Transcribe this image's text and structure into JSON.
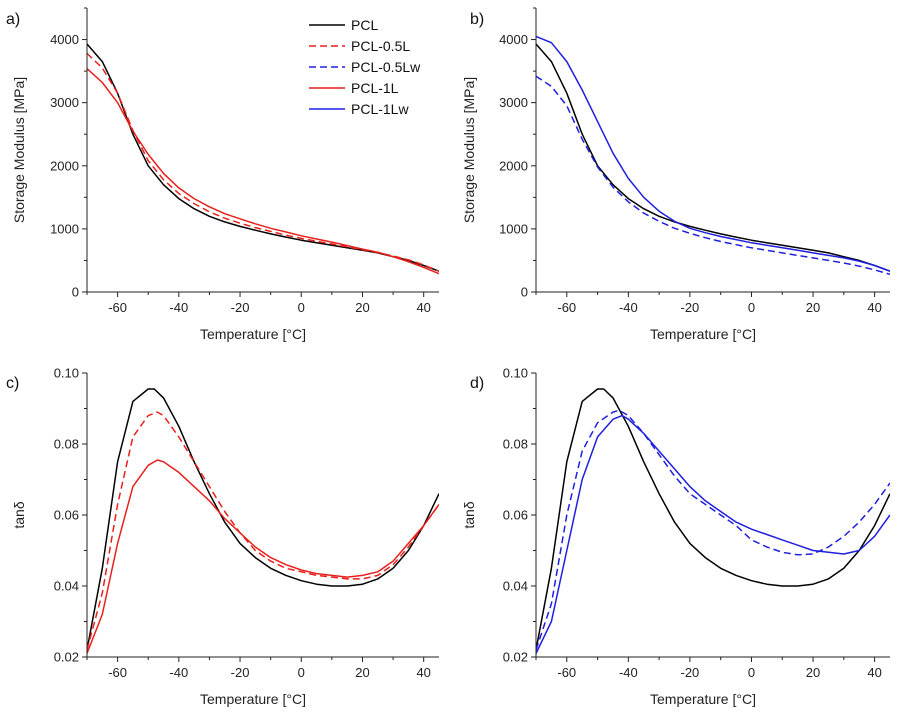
{
  "chart_data": [
    {
      "panel_label": "a)",
      "type": "line",
      "xlabel": "Temperature [°C]",
      "ylabel": "Storage Modulus [MPa]",
      "xlim": [
        -70,
        45
      ],
      "ylim": [
        0,
        4500
      ],
      "xticks": [
        -60,
        -40,
        -20,
        0,
        20,
        40
      ],
      "yticks": [
        0,
        1000,
        2000,
        3000,
        4000
      ],
      "legend": {
        "placement": "top-right"
      },
      "series": [
        {
          "name": "PCL",
          "color": "#000000",
          "dash": "solid",
          "x": [
            -70,
            -65,
            -60,
            -55,
            -50,
            -45,
            -40,
            -35,
            -30,
            -25,
            -20,
            -15,
            -10,
            -5,
            0,
            5,
            10,
            15,
            20,
            25,
            30,
            35,
            40,
            45
          ],
          "y": [
            3930,
            3650,
            3150,
            2500,
            2000,
            1700,
            1480,
            1320,
            1200,
            1110,
            1040,
            980,
            920,
            870,
            820,
            780,
            740,
            700,
            660,
            620,
            560,
            500,
            420,
            330
          ]
        },
        {
          "name": "PCL-0.5L",
          "color": "#e8201c",
          "dash": "dashed",
          "x": [
            -70,
            -65,
            -60,
            -55,
            -50,
            -45,
            -40,
            -35,
            -30,
            -25,
            -20,
            -15,
            -10,
            -5,
            0,
            5,
            10,
            15,
            20,
            25,
            30,
            35,
            40,
            45
          ],
          "y": [
            3780,
            3550,
            3150,
            2560,
            2080,
            1780,
            1560,
            1400,
            1270,
            1170,
            1090,
            1020,
            960,
            900,
            850,
            805,
            760,
            715,
            670,
            625,
            570,
            510,
            430,
            330
          ]
        },
        {
          "name": "PCL-1L",
          "color": "#e8201c",
          "dash": "solid",
          "x": [
            -70,
            -65,
            -60,
            -55,
            -50,
            -45,
            -40,
            -35,
            -30,
            -25,
            -20,
            -15,
            -10,
            -5,
            0,
            5,
            10,
            15,
            20,
            25,
            30,
            35,
            40,
            45
          ],
          "y": [
            3540,
            3320,
            3000,
            2550,
            2180,
            1880,
            1650,
            1480,
            1350,
            1240,
            1160,
            1080,
            1010,
            950,
            890,
            840,
            790,
            735,
            680,
            630,
            560,
            480,
            390,
            290
          ]
        }
      ]
    },
    {
      "panel_label": "b)",
      "type": "line",
      "xlabel": "Temperature [°C]",
      "ylabel": "Storage Modulus [MPa]",
      "xlim": [
        -70,
        45
      ],
      "ylim": [
        0,
        4500
      ],
      "xticks": [
        -60,
        -40,
        -20,
        0,
        20,
        40
      ],
      "yticks": [
        0,
        1000,
        2000,
        3000,
        4000
      ],
      "series": [
        {
          "name": "PCL",
          "color": "#000000",
          "dash": "solid",
          "x": [
            -70,
            -65,
            -60,
            -55,
            -50,
            -45,
            -40,
            -35,
            -30,
            -25,
            -20,
            -15,
            -10,
            -5,
            0,
            5,
            10,
            15,
            20,
            25,
            30,
            35,
            40,
            45
          ],
          "y": [
            3930,
            3650,
            3150,
            2500,
            2000,
            1700,
            1480,
            1320,
            1200,
            1110,
            1040,
            980,
            920,
            870,
            820,
            780,
            740,
            700,
            660,
            620,
            560,
            500,
            420,
            330
          ]
        },
        {
          "name": "PCL-0.5Lw",
          "color": "#1f1fe0",
          "dash": "dashed",
          "x": [
            -70,
            -65,
            -60,
            -55,
            -50,
            -45,
            -40,
            -35,
            -30,
            -25,
            -20,
            -15,
            -10,
            -5,
            0,
            5,
            10,
            15,
            20,
            25,
            30,
            35,
            40,
            45
          ],
          "y": [
            3420,
            3260,
            2950,
            2420,
            1980,
            1660,
            1430,
            1250,
            1120,
            1010,
            930,
            860,
            800,
            750,
            700,
            660,
            620,
            580,
            540,
            500,
            460,
            410,
            350,
            280
          ]
        },
        {
          "name": "PCL-1Lw",
          "color": "#1f1fe0",
          "dash": "solid",
          "x": [
            -70,
            -65,
            -60,
            -55,
            -50,
            -45,
            -40,
            -35,
            -30,
            -25,
            -20,
            -15,
            -10,
            -5,
            0,
            5,
            10,
            15,
            20,
            25,
            30,
            35,
            40,
            45
          ],
          "y": [
            4050,
            3950,
            3650,
            3200,
            2700,
            2200,
            1800,
            1500,
            1280,
            1120,
            1010,
            940,
            880,
            830,
            780,
            740,
            700,
            660,
            620,
            580,
            540,
            490,
            420,
            330
          ]
        }
      ]
    },
    {
      "panel_label": "c)",
      "type": "line",
      "xlabel": "Temperature [°C]",
      "ylabel": "tanδ",
      "xlim": [
        -70,
        45
      ],
      "ylim": [
        0.02,
        0.1
      ],
      "xticks": [
        -60,
        -40,
        -20,
        0,
        20,
        40
      ],
      "yticks": [
        0.02,
        0.04,
        0.06,
        0.08,
        0.1
      ],
      "series": [
        {
          "name": "PCL",
          "color": "#000000",
          "dash": "solid",
          "x": [
            -70,
            -65,
            -60,
            -55,
            -50,
            -48,
            -45,
            -40,
            -35,
            -30,
            -25,
            -20,
            -15,
            -10,
            -5,
            0,
            5,
            10,
            15,
            20,
            25,
            30,
            35,
            40,
            45
          ],
          "y": [
            0.022,
            0.045,
            0.075,
            0.092,
            0.0955,
            0.0955,
            0.093,
            0.085,
            0.075,
            0.066,
            0.058,
            0.052,
            0.048,
            0.045,
            0.043,
            0.0415,
            0.0405,
            0.04,
            0.04,
            0.0405,
            0.042,
            0.045,
            0.05,
            0.057,
            0.066
          ]
        },
        {
          "name": "PCL-0.5L",
          "color": "#e8201c",
          "dash": "dashed",
          "x": [
            -70,
            -65,
            -60,
            -55,
            -50,
            -47,
            -45,
            -40,
            -35,
            -30,
            -25,
            -20,
            -15,
            -10,
            -5,
            0,
            5,
            10,
            15,
            20,
            25,
            30,
            35,
            40,
            45
          ],
          "y": [
            0.022,
            0.038,
            0.063,
            0.082,
            0.088,
            0.089,
            0.088,
            0.082,
            0.075,
            0.068,
            0.061,
            0.055,
            0.05,
            0.047,
            0.045,
            0.044,
            0.043,
            0.0425,
            0.042,
            0.042,
            0.043,
            0.046,
            0.051,
            0.057,
            0.063
          ]
        },
        {
          "name": "PCL-1L",
          "color": "#e8201c",
          "dash": "solid",
          "x": [
            -70,
            -65,
            -60,
            -55,
            -50,
            -47,
            -45,
            -40,
            -35,
            -30,
            -25,
            -20,
            -15,
            -10,
            -5,
            0,
            5,
            10,
            15,
            20,
            25,
            30,
            35,
            40,
            45
          ],
          "y": [
            0.021,
            0.032,
            0.052,
            0.068,
            0.074,
            0.0755,
            0.075,
            0.072,
            0.068,
            0.064,
            0.059,
            0.055,
            0.051,
            0.048,
            0.046,
            0.0445,
            0.0435,
            0.043,
            0.0425,
            0.043,
            0.044,
            0.047,
            0.052,
            0.057,
            0.063
          ]
        }
      ]
    },
    {
      "panel_label": "d)",
      "type": "line",
      "xlabel": "Temperature [°C]",
      "ylabel": "tanδ",
      "xlim": [
        -70,
        45
      ],
      "ylim": [
        0.02,
        0.1
      ],
      "xticks": [
        -60,
        -40,
        -20,
        0,
        20,
        40
      ],
      "yticks": [
        0.02,
        0.04,
        0.06,
        0.08,
        0.1
      ],
      "series": [
        {
          "name": "PCL",
          "color": "#000000",
          "dash": "solid",
          "x": [
            -70,
            -65,
            -60,
            -55,
            -50,
            -48,
            -45,
            -40,
            -35,
            -30,
            -25,
            -20,
            -15,
            -10,
            -5,
            0,
            5,
            10,
            15,
            20,
            25,
            30,
            35,
            40,
            45
          ],
          "y": [
            0.022,
            0.045,
            0.075,
            0.092,
            0.0955,
            0.0955,
            0.093,
            0.085,
            0.075,
            0.066,
            0.058,
            0.052,
            0.048,
            0.045,
            0.043,
            0.0415,
            0.0405,
            0.04,
            0.04,
            0.0405,
            0.042,
            0.045,
            0.05,
            0.057,
            0.066
          ]
        },
        {
          "name": "PCL-0.5Lw",
          "color": "#1f1fe0",
          "dash": "dashed",
          "x": [
            -70,
            -65,
            -60,
            -55,
            -50,
            -45,
            -43,
            -40,
            -35,
            -30,
            -25,
            -20,
            -15,
            -10,
            -5,
            0,
            5,
            10,
            15,
            20,
            25,
            30,
            35,
            40,
            45
          ],
          "y": [
            0.022,
            0.035,
            0.06,
            0.078,
            0.086,
            0.089,
            0.0895,
            0.088,
            0.083,
            0.077,
            0.071,
            0.066,
            0.063,
            0.06,
            0.057,
            0.053,
            0.051,
            0.0495,
            0.0488,
            0.049,
            0.051,
            0.054,
            0.058,
            0.063,
            0.069
          ]
        },
        {
          "name": "PCL-1Lw",
          "color": "#1f1fe0",
          "dash": "solid",
          "x": [
            -70,
            -65,
            -60,
            -55,
            -50,
            -45,
            -42,
            -40,
            -35,
            -30,
            -25,
            -20,
            -15,
            -10,
            -5,
            0,
            5,
            10,
            15,
            20,
            25,
            30,
            35,
            40,
            45
          ],
          "y": [
            0.021,
            0.03,
            0.05,
            0.07,
            0.082,
            0.087,
            0.088,
            0.087,
            0.083,
            0.078,
            0.073,
            0.068,
            0.064,
            0.061,
            0.058,
            0.056,
            0.0545,
            0.053,
            0.0515,
            0.05,
            0.0495,
            0.049,
            0.05,
            0.054,
            0.06
          ]
        }
      ]
    }
  ],
  "legend_entries": [
    {
      "name": "PCL",
      "color": "#000000",
      "dash": "solid"
    },
    {
      "name": "PCL-0.5L",
      "color": "#e8201c",
      "dash": "dashed"
    },
    {
      "name": "PCL-0.5Lw",
      "color": "#1f1fe0",
      "dash": "dashed"
    },
    {
      "name": "PCL-1L",
      "color": "#e8201c",
      "dash": "solid"
    },
    {
      "name": "PCL-1Lw",
      "color": "#1f1fe0",
      "dash": "solid"
    }
  ]
}
